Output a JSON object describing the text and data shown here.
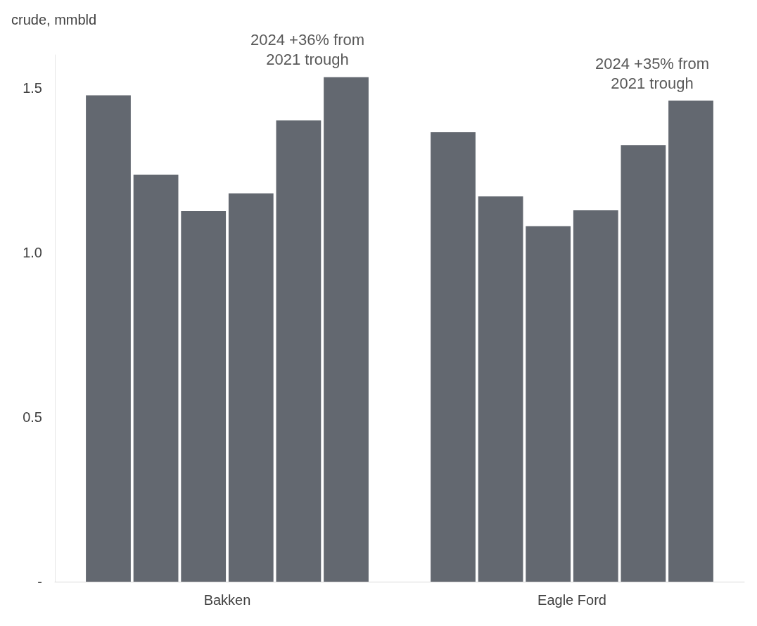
{
  "chart_data": {
    "type": "bar",
    "ylabel": "crude, mmbld",
    "categories": [
      "Bakken",
      "Eagle Ford"
    ],
    "series": [
      {
        "color": "#636870",
        "values": [
          1.477,
          1.365
        ]
      },
      {
        "color": "#636870",
        "values": [
          1.236,
          1.17
        ]
      },
      {
        "color": "#636870",
        "values": [
          1.126,
          1.08
        ]
      },
      {
        "color": "#636870",
        "values": [
          1.179,
          1.128
        ]
      },
      {
        "color": "#636870",
        "values": [
          1.401,
          1.326
        ]
      },
      {
        "color": "#636870",
        "values": [
          1.532,
          1.461
        ]
      }
    ],
    "ylim": [
      0,
      1.6
    ],
    "yticks": [
      {
        "value": 0,
        "label": "-"
      },
      0.5,
      {
        "value": 1,
        "label": "1.0"
      },
      1.5
    ],
    "annotations": [
      "2024 +36% from\n2021 trough",
      "2024 +35% from\n2021 trough"
    ],
    "grid": false
  }
}
